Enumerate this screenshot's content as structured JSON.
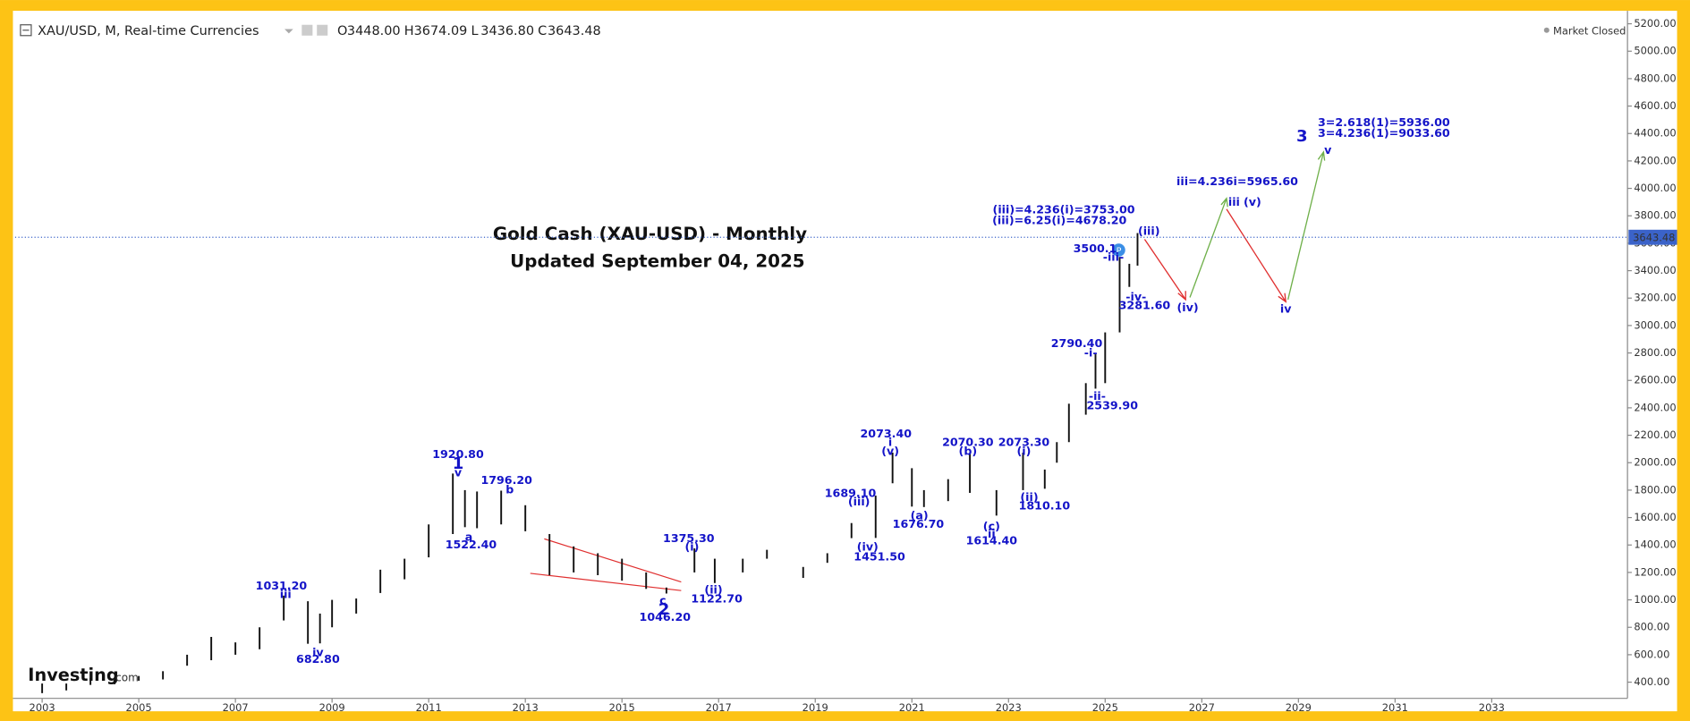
{
  "header": {
    "symbol": "XAU/USD, M, Real-time Currencies",
    "ohlc": [
      {
        "label": "O",
        "value": "3448.00"
      },
      {
        "label": "H",
        "value": "3674.09"
      },
      {
        "label": "L",
        "value": "3436.80"
      },
      {
        "label": "C",
        "value": "3643.48"
      }
    ],
    "status": "Market Closed"
  },
  "logo": {
    "name": "Investing",
    "suffix": ".com"
  },
  "chart_data": {
    "type": "hilo",
    "title": "Gold Cash (XAU-USD) - Monthly",
    "subtitle": "Updated September 04, 2025",
    "color": "#111111",
    "x": [
      2003.0,
      2003.5,
      2004.0,
      2004.5,
      2005.0,
      2005.5,
      2006.0,
      2006.5,
      2007.0,
      2007.5,
      2008.0,
      2008.5,
      2008.75,
      2009.0,
      2009.5,
      2010.0,
      2010.5,
      2011.0,
      2011.5,
      2011.75,
      2012.0,
      2012.5,
      2013.0,
      2013.5,
      2014.0,
      2014.5,
      2015.0,
      2015.5,
      2015.92,
      2016.5,
      2016.92,
      2017.5,
      2018.0,
      2018.75,
      2019.25,
      2019.75,
      2020.25,
      2020.6,
      2021.0,
      2021.25,
      2021.75,
      2022.2,
      2022.75,
      2023.3,
      2023.75,
      2024.0,
      2024.25,
      2024.6,
      2024.8,
      2025.0,
      2025.3,
      2025.5,
      2025.67
    ],
    "low": [
      320,
      340,
      380,
      385,
      410,
      420,
      520,
      560,
      600,
      640,
      850,
      680,
      682.8,
      800,
      900,
      1050,
      1150,
      1310,
      1480,
      1530,
      1522.4,
      1550,
      1500,
      1180,
      1200,
      1180,
      1140,
      1080,
      1046.2,
      1200,
      1122.7,
      1200,
      1300,
      1160,
      1270,
      1450,
      1451.5,
      1850,
      1680,
      1676.7,
      1720,
      1780,
      1614.4,
      1800,
      1810.1,
      2000,
      2150,
      2350,
      2539.9,
      2580,
      2950,
      3281.6,
      3436.8
    ],
    "high": [
      390,
      390,
      430,
      430,
      445,
      480,
      600,
      730,
      690,
      800,
      1031.2,
      990,
      900,
      1000,
      1010,
      1220,
      1300,
      1550,
      1920.8,
      1800,
      1790,
      1796.2,
      1690,
      1480,
      1390,
      1340,
      1300,
      1200,
      1090,
      1375.3,
      1300,
      1300,
      1365,
      1240,
      1340,
      1560,
      1760,
      2073.4,
      1960,
      1800,
      1880,
      2070.3,
      1800,
      2073.3,
      1950,
      2150,
      2430,
      2580,
      2790.4,
      2950,
      3500.1,
      3450,
      3674.09
    ],
    "last_price": 3643.48,
    "xlim": [
      2002.44,
      2035.81
    ],
    "ylim": [
      260,
      5260
    ],
    "xticks": [
      2003,
      2005,
      2007,
      2009,
      2011,
      2013,
      2015,
      2017,
      2019,
      2021,
      2023,
      2025,
      2027,
      2029,
      2031,
      2033
    ],
    "yticks": [
      {
        "value": 400,
        "label": "400.00"
      },
      {
        "value": 600,
        "label": "600.00"
      },
      {
        "value": 800,
        "label": "800.00"
      },
      {
        "value": 1000,
        "label": "1000.00"
      },
      {
        "value": 1200,
        "label": "1200.00"
      },
      {
        "value": 1400,
        "label": "1400.00"
      },
      {
        "value": 1600,
        "label": "1600.00"
      },
      {
        "value": 1800,
        "label": "1800.00"
      },
      {
        "value": 2000,
        "label": "2000.00"
      },
      {
        "value": 2200,
        "label": "2200.00"
      },
      {
        "value": 2400,
        "label": "2400.00"
      },
      {
        "value": 2600,
        "label": "2600.00"
      },
      {
        "value": 2800,
        "label": "2800.00"
      },
      {
        "value": 3000,
        "label": "3000.00"
      },
      {
        "value": 3200,
        "label": "3200.00"
      },
      {
        "value": 3400,
        "label": "3400.00"
      },
      {
        "value": 3600,
        "label": "3600.00"
      },
      {
        "value": 3800,
        "label": "3800.00"
      },
      {
        "value": 4000,
        "label": "4000.00"
      },
      {
        "value": 4200,
        "label": "4200.00"
      },
      {
        "value": 4400,
        "label": "4400.00"
      },
      {
        "value": 4600,
        "label": "4600.00"
      },
      {
        "value": 4800,
        "label": "4800.00"
      },
      {
        "value": 5000,
        "label": "5000.00"
      },
      {
        "value": 5200,
        "label": "5200.00"
      }
    ],
    "annotations": [
      "1031.20",
      "iii",
      "iv",
      "682.80",
      "1920.80",
      "1",
      "v",
      "a",
      "1522.40",
      "1796.20",
      "b",
      "1375.30",
      "(i)",
      "(ii)",
      "1122.70",
      "c",
      "2",
      "1046.20",
      "1689.10",
      "(iii)",
      "(iv)",
      "1451.50",
      "2073.40",
      "i",
      "(v)",
      "(a)",
      "1676.70",
      "2070.30",
      "(b)",
      "(c)",
      "ii",
      "1614.40",
      "2073.30",
      "(i)",
      "(ii)",
      "1810.10",
      "2790.40",
      "-i-",
      "-ii-",
      "2539.90",
      "3500.1",
      "-iii-",
      "-iv-",
      "3281.60",
      "(iii)",
      "(iii)=4.236(i)=3753.00",
      "(iii)=6.25(i)=4678.20",
      "(iv)",
      "iii=4.236i=5965.60",
      "iii",
      "(v)",
      "iv",
      "3",
      "v",
      "3=2.618(1)=5936.00",
      "3=4.236(1)=9033.60"
    ]
  }
}
